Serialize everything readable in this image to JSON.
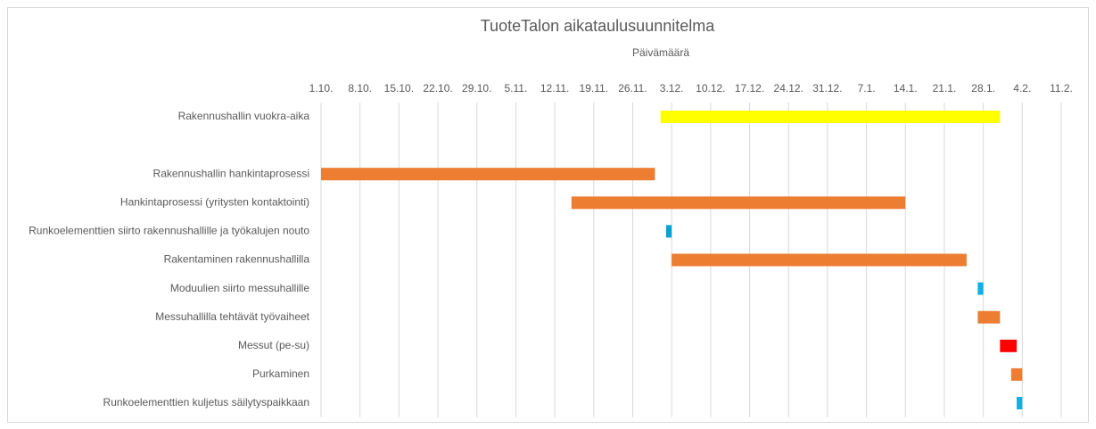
{
  "chart_data": {
    "type": "gantt",
    "title": "TuoteTalon aikataulusuunnitelma",
    "x_label": "Päivämäärä",
    "categories": [
      "Rakennushallin vuokra-aika",
      null,
      "Rakennushallin hankintaprosessi",
      "Hankintaprosessi (yritysten kontaktointi)",
      "Runkoelementtien siirto rakennushallille ja työkalujen nouto",
      "Rakentaminen rakennushallilla",
      "Moduulien siirto messuhallille",
      "Messuhallilla tehtävät työvaiheet",
      "Messut (pe-su)",
      "Purkaminen",
      "Runkoelementtien kuljetus säilytyspaikkaan"
    ],
    "start": [
      61,
      null,
      0,
      45,
      62,
      63,
      118,
      118,
      122,
      124,
      125
    ],
    "end": [
      122,
      null,
      60,
      105,
      63,
      116,
      119,
      122,
      125,
      126,
      126
    ],
    "colors": [
      "#ffff00",
      null,
      "#ed7d31",
      "#ed7d31",
      "#0f9ed5",
      "#ed7d31",
      "#0fb0e8",
      "#ed7d31",
      "#ff0000",
      "#ed7d31",
      "#0fb0e8"
    ],
    "xlim": [
      0,
      133
    ],
    "xticks": [
      {
        "value": 0,
        "label": "1.10."
      },
      {
        "value": 7,
        "label": "8.10."
      },
      {
        "value": 14,
        "label": "15.10."
      },
      {
        "value": 21,
        "label": "22.10."
      },
      {
        "value": 28,
        "label": "29.10."
      },
      {
        "value": 35,
        "label": "5.11."
      },
      {
        "value": 42,
        "label": "12.11."
      },
      {
        "value": 49,
        "label": "19.11."
      },
      {
        "value": 56,
        "label": "26.11."
      },
      {
        "value": 63,
        "label": "3.12."
      },
      {
        "value": 70,
        "label": "10.12."
      },
      {
        "value": 77,
        "label": "17.12."
      },
      {
        "value": 84,
        "label": "24.12."
      },
      {
        "value": 91,
        "label": "31.12."
      },
      {
        "value": 98,
        "label": "7.1."
      },
      {
        "value": 105,
        "label": "14.1."
      },
      {
        "value": 112,
        "label": "21.1."
      },
      {
        "value": 119,
        "label": "28.1."
      },
      {
        "value": 126,
        "label": "4.2."
      },
      {
        "value": 133,
        "label": "11.2."
      }
    ],
    "grid": true
  }
}
